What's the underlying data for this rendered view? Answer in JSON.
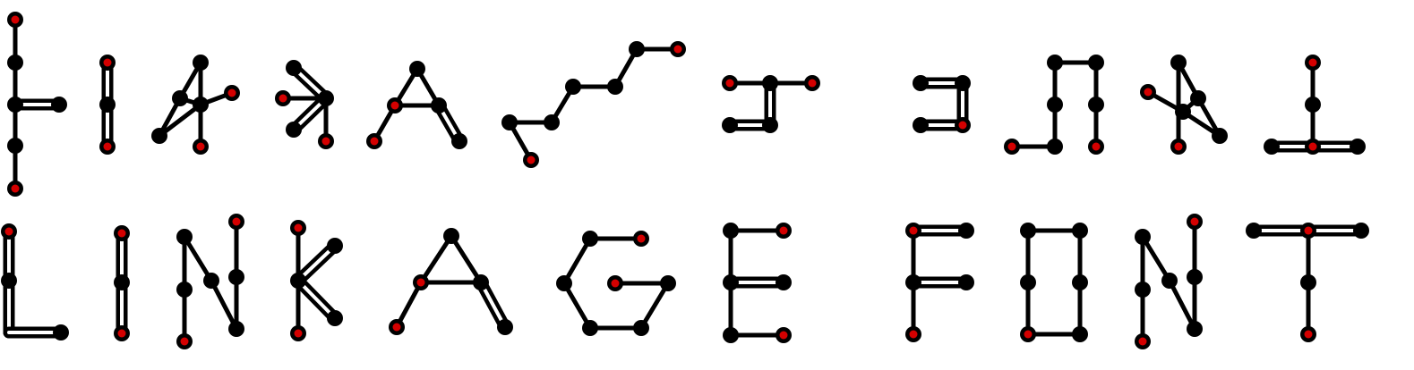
{
  "diagram": {
    "word_lines": [
      "LINKAGE",
      "FONT"
    ],
    "colors": {
      "link": "#000000",
      "joint": "#000000",
      "anchor": "#d40000",
      "background": "#ffffff"
    },
    "rows": [
      {
        "name": "folded",
        "glyphs": [
          "L",
          "I",
          "N",
          "K",
          "A",
          "G",
          "E",
          "F",
          "O",
          "N",
          "T"
        ]
      },
      {
        "name": "unfolded",
        "glyphs": [
          "L",
          "I",
          "N",
          "K",
          "A",
          "G",
          "E",
          "F",
          "O",
          "N",
          "T"
        ]
      }
    ]
  }
}
